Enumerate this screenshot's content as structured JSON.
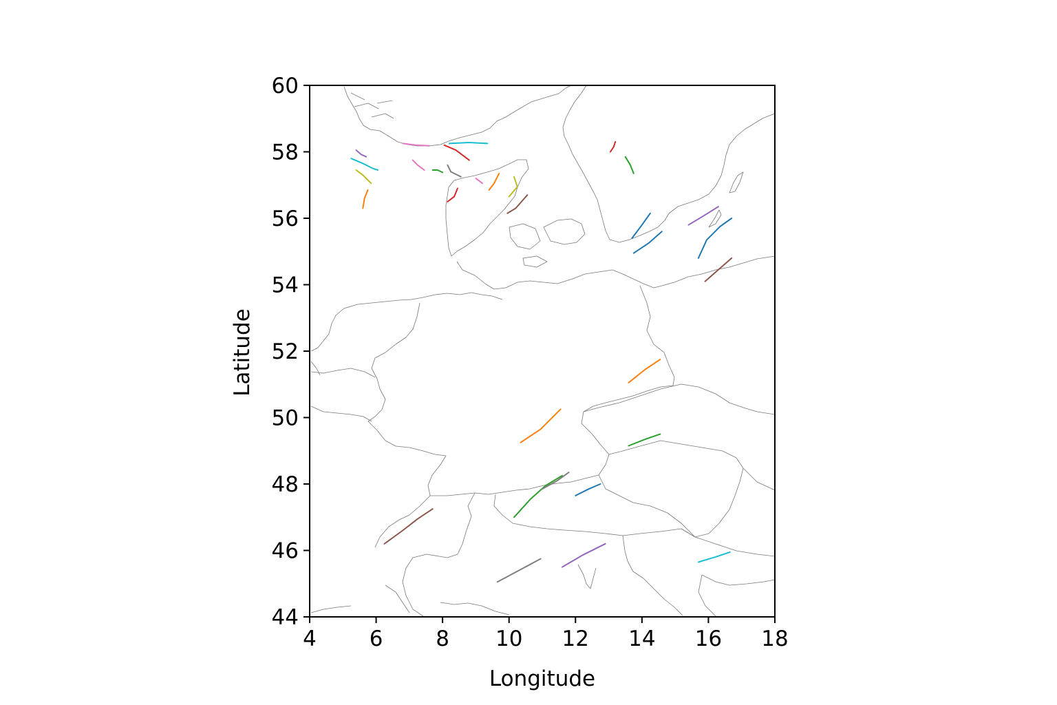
{
  "chart_data": {
    "type": "map-tracks",
    "xlabel": "Longitude",
    "ylabel": "Latitude",
    "xlim": [
      4,
      18
    ],
    "ylim": [
      44,
      60
    ],
    "xticks": [
      "4",
      "6",
      "8",
      "10",
      "12",
      "14",
      "16",
      "18"
    ],
    "yticks": [
      "44",
      "46",
      "48",
      "50",
      "52",
      "54",
      "56",
      "58",
      "60"
    ],
    "grid": false,
    "tracks": [
      {
        "color": "#9467bd",
        "points": [
          [
            5.4,
            58.05
          ],
          [
            5.55,
            57.92
          ],
          [
            5.7,
            57.85
          ]
        ]
      },
      {
        "color": "#17becf",
        "points": [
          [
            5.25,
            57.8
          ],
          [
            5.6,
            57.65
          ],
          [
            5.9,
            57.5
          ],
          [
            6.05,
            57.45
          ]
        ]
      },
      {
        "color": "#bcbd22",
        "points": [
          [
            5.4,
            57.45
          ],
          [
            5.6,
            57.3
          ],
          [
            5.85,
            57.05
          ]
        ]
      },
      {
        "color": "#ff7f0e",
        "points": [
          [
            5.75,
            56.85
          ],
          [
            5.65,
            56.6
          ],
          [
            5.6,
            56.3
          ]
        ]
      },
      {
        "color": "#e377c2",
        "points": [
          [
            6.8,
            58.25
          ],
          [
            7.2,
            58.2
          ],
          [
            7.6,
            58.18
          ]
        ]
      },
      {
        "color": "#e377c2",
        "points": [
          [
            7.1,
            57.75
          ],
          [
            7.25,
            57.6
          ],
          [
            7.45,
            57.45
          ]
        ]
      },
      {
        "color": "#2ca02c",
        "points": [
          [
            7.7,
            57.45
          ],
          [
            7.85,
            57.45
          ],
          [
            8.0,
            57.38
          ]
        ]
      },
      {
        "color": "#7f7f7f",
        "points": [
          [
            8.15,
            57.6
          ],
          [
            8.25,
            57.4
          ],
          [
            8.55,
            57.25
          ]
        ]
      },
      {
        "color": "#d62728",
        "points": [
          [
            8.05,
            58.2
          ],
          [
            8.4,
            58.05
          ],
          [
            8.8,
            57.75
          ]
        ]
      },
      {
        "color": "#17becf",
        "points": [
          [
            8.2,
            58.25
          ],
          [
            8.8,
            58.28
          ],
          [
            9.35,
            58.25
          ]
        ]
      },
      {
        "color": "#d62728",
        "points": [
          [
            8.15,
            56.5
          ],
          [
            8.35,
            56.65
          ],
          [
            8.45,
            56.9
          ]
        ]
      },
      {
        "color": "#e377c2",
        "points": [
          [
            9.0,
            57.2
          ],
          [
            9.2,
            57.05
          ]
        ]
      },
      {
        "color": "#ff7f0e",
        "points": [
          [
            9.4,
            56.85
          ],
          [
            9.55,
            57.05
          ],
          [
            9.7,
            57.35
          ]
        ]
      },
      {
        "color": "#bcbd22",
        "points": [
          [
            10.0,
            56.65
          ],
          [
            10.25,
            56.95
          ],
          [
            10.15,
            57.25
          ]
        ]
      },
      {
        "color": "#8c564b",
        "points": [
          [
            9.95,
            56.15
          ],
          [
            10.2,
            56.3
          ],
          [
            10.55,
            56.7
          ]
        ]
      },
      {
        "color": "#d62728",
        "points": [
          [
            13.05,
            58.0
          ],
          [
            13.15,
            58.15
          ],
          [
            13.2,
            58.3
          ]
        ]
      },
      {
        "color": "#2ca02c",
        "points": [
          [
            13.5,
            57.85
          ],
          [
            13.65,
            57.6
          ],
          [
            13.75,
            57.35
          ]
        ]
      },
      {
        "color": "#1f77b4",
        "points": [
          [
            13.7,
            55.4
          ],
          [
            14.0,
            55.8
          ],
          [
            14.25,
            56.15
          ]
        ]
      },
      {
        "color": "#1f77b4",
        "points": [
          [
            13.75,
            54.95
          ],
          [
            14.2,
            55.25
          ],
          [
            14.6,
            55.6
          ]
        ]
      },
      {
        "color": "#9467bd",
        "points": [
          [
            15.4,
            55.8
          ],
          [
            15.9,
            56.1
          ],
          [
            16.3,
            56.35
          ]
        ]
      },
      {
        "color": "#1f77b4",
        "points": [
          [
            15.7,
            54.8
          ],
          [
            15.95,
            55.35
          ],
          [
            16.35,
            55.75
          ],
          [
            16.7,
            56.0
          ]
        ]
      },
      {
        "color": "#8c564b",
        "points": [
          [
            15.9,
            54.1
          ],
          [
            16.3,
            54.45
          ],
          [
            16.7,
            54.8
          ]
        ]
      },
      {
        "color": "#ff7f0e",
        "points": [
          [
            13.6,
            51.05
          ],
          [
            14.1,
            51.45
          ],
          [
            14.55,
            51.75
          ]
        ]
      },
      {
        "color": "#ff7f0e",
        "points": [
          [
            10.35,
            49.25
          ],
          [
            10.95,
            49.65
          ],
          [
            11.55,
            50.25
          ]
        ]
      },
      {
        "color": "#2ca02c",
        "points": [
          [
            13.6,
            49.15
          ],
          [
            14.1,
            49.35
          ],
          [
            14.55,
            49.5
          ]
        ]
      },
      {
        "color": "#1f77b4",
        "points": [
          [
            12.0,
            47.65
          ],
          [
            12.4,
            47.85
          ],
          [
            12.75,
            48.0
          ]
        ]
      },
      {
        "color": "#2ca02c",
        "points": [
          [
            10.15,
            47.0
          ],
          [
            10.65,
            47.55
          ],
          [
            11.1,
            47.95
          ],
          [
            11.6,
            48.25
          ]
        ]
      },
      {
        "color": "#7f7f7f",
        "points": [
          [
            11.0,
            47.85
          ],
          [
            11.45,
            48.1
          ],
          [
            11.8,
            48.35
          ]
        ]
      },
      {
        "color": "#8c564b",
        "points": [
          [
            6.25,
            46.2
          ],
          [
            6.8,
            46.6
          ],
          [
            7.25,
            46.95
          ],
          [
            7.7,
            47.25
          ]
        ]
      },
      {
        "color": "#7f7f7f",
        "points": [
          [
            9.65,
            45.05
          ],
          [
            10.3,
            45.4
          ],
          [
            10.95,
            45.75
          ]
        ]
      },
      {
        "color": "#9467bd",
        "points": [
          [
            11.6,
            45.5
          ],
          [
            12.2,
            45.85
          ],
          [
            12.9,
            46.2
          ]
        ]
      },
      {
        "color": "#17becf",
        "points": [
          [
            15.7,
            45.65
          ],
          [
            16.2,
            45.8
          ],
          [
            16.65,
            45.95
          ]
        ]
      }
    ]
  }
}
